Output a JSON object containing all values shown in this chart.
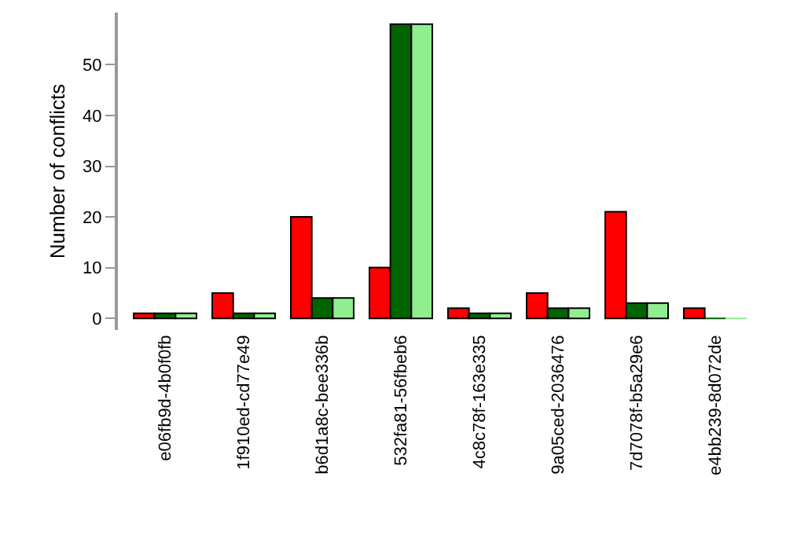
{
  "chart_data": {
    "type": "bar",
    "ylabel": "Number of conflicts",
    "categories": [
      "e06fb9d-4b0f0fb",
      "1f910ed-cd77e49",
      "b6d1a8c-bee336b",
      "532fa81-56fbeb6",
      "4c8c78f-163e335",
      "9a05ced-2036476",
      "7d7078f-b5a29e6",
      "e4bb239-8d072de"
    ],
    "series": [
      {
        "color": "#ff0000",
        "values": [
          1,
          5,
          20,
          10,
          2,
          5,
          21,
          2
        ]
      },
      {
        "color": "#006400",
        "values": [
          1,
          1,
          4,
          58,
          1,
          2,
          3,
          0
        ]
      },
      {
        "color": "#90ee90",
        "values": [
          1,
          1,
          4,
          58,
          1,
          2,
          3,
          0
        ]
      }
    ],
    "ylim": [
      -2.3,
      60.3
    ],
    "yticks": [
      0,
      10,
      20,
      30,
      40,
      50
    ],
    "legend": false
  }
}
